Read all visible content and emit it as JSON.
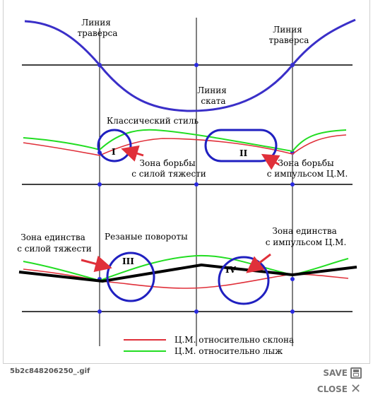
{
  "labels": {
    "traverse_left": [
      "Линия",
      "траверса"
    ],
    "traverse_right": [
      "Линия",
      "траверса"
    ],
    "skate_line": [
      "Линия",
      "ската"
    ],
    "classic_style": "Классический стиль",
    "gravity_struggle": [
      "Зона борьбы",
      "с силой тяжести"
    ],
    "impulse_struggle": [
      "Зона борьбы",
      "с импульсом Ц.М."
    ],
    "gravity_unity": [
      "Зона единства",
      "с силой тяжести"
    ],
    "carved_turns": "Резаные повороты",
    "impulse_unity": [
      "Зона единства",
      "с импульсом Ц.М."
    ]
  },
  "zones": [
    "I",
    "II",
    "III",
    "IV"
  ],
  "legend": [
    {
      "label": "Ц.М. относительно  склона",
      "color": "#e0303a"
    },
    {
      "label": "Ц.М. относительно  лыж",
      "color": "#22dd22"
    }
  ],
  "colors": {
    "trajectory": "#3a2fc8",
    "zone_outline": "#2020c0",
    "arrow": "#e0303a",
    "thick_line": "#000000",
    "dot": "#2a2ae0"
  },
  "footer": {
    "filename": "5b2c848206250_.gif",
    "save_label": "SAVE",
    "close_label": "CLOSE"
  }
}
